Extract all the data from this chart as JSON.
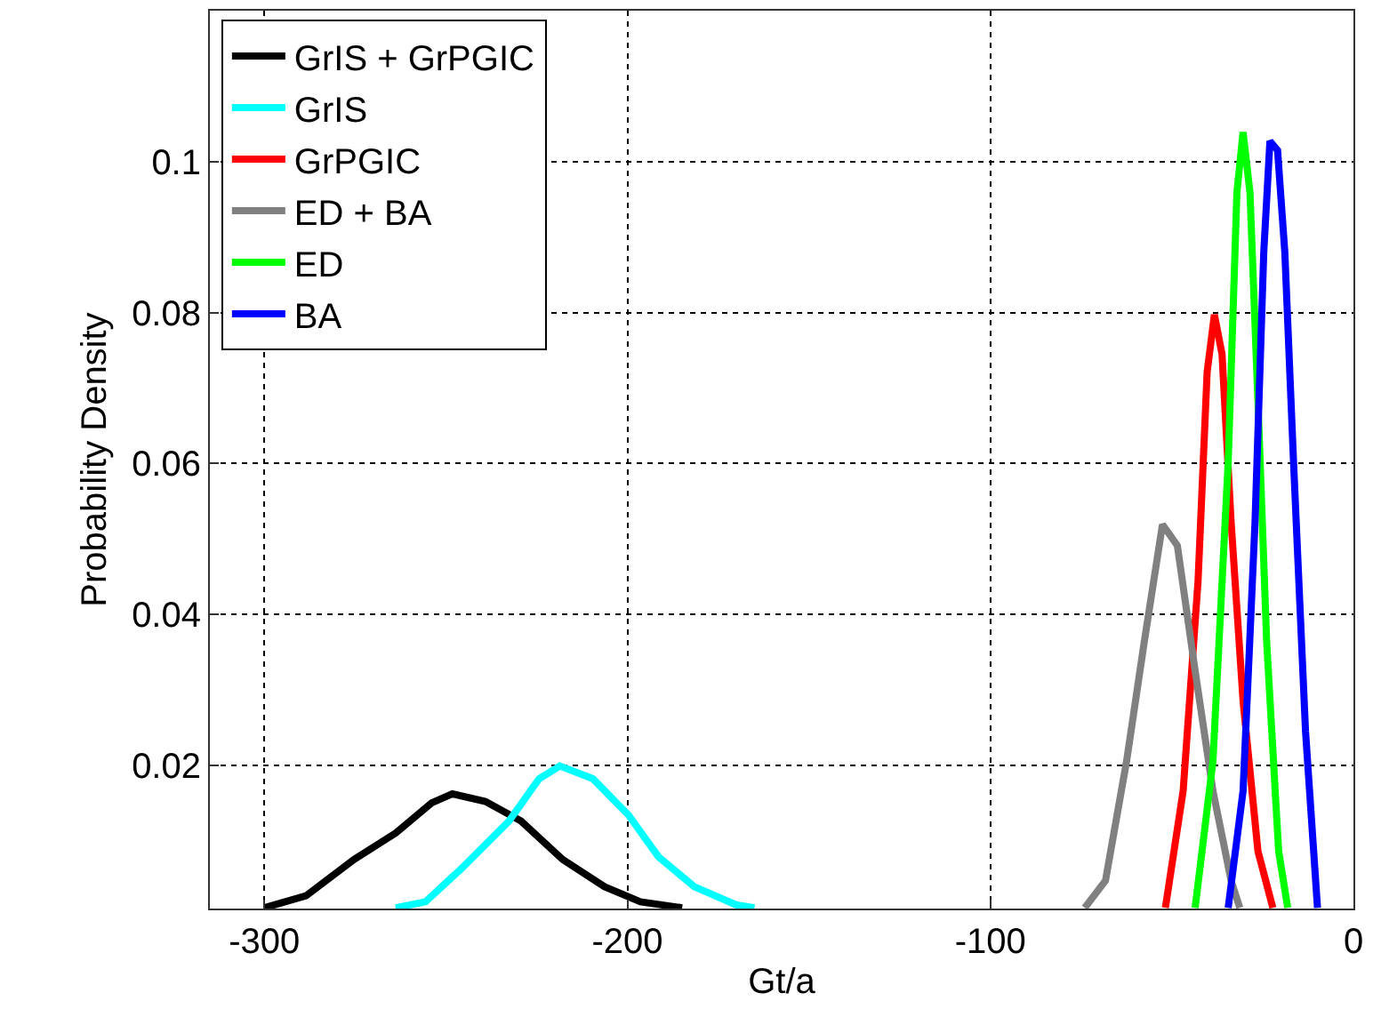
{
  "chart_data": {
    "type": "line",
    "xlabel": "Gt/a",
    "ylabel": "Probability Density",
    "xlim": [
      -315,
      0
    ],
    "ylim": [
      0.001,
      0.12
    ],
    "xticks": [
      -300,
      -200,
      -100,
      0
    ],
    "yticks": [
      0.02,
      0.04,
      0.06,
      0.08,
      0.1
    ],
    "grid": true,
    "legend": "top left",
    "line_style": "solid",
    "marker": "none",
    "series": [
      {
        "name": "GrIS + GrPGIC",
        "color": "#000000",
        "x": [
          -300,
          -288.5,
          -275.3,
          -263.8,
          -253.9,
          -248.2,
          -239.1,
          -229.3,
          -217.8,
          -206.3,
          -196.4,
          -184.9
        ],
        "values": [
          0.0011,
          0.0027,
          0.0075,
          0.011,
          0.015,
          0.0162,
          0.0152,
          0.0126,
          0.0075,
          0.0039,
          0.0019,
          0.0011
        ]
      },
      {
        "name": "GrIS",
        "color": "#00ffff",
        "x": [
          -263.8,
          -255.6,
          -245.7,
          -232.6,
          -224.3,
          -218.6,
          -209.5,
          -199.7,
          -191.5,
          -181.6,
          -170.1,
          -165
        ],
        "values": [
          0.0011,
          0.0019,
          0.0063,
          0.0126,
          0.0182,
          0.0199,
          0.0182,
          0.0134,
          0.0079,
          0.0039,
          0.0015,
          0.0011
        ]
      },
      {
        "name": "GrPGIC",
        "color": "#ff0000",
        "x": [
          -51.8,
          -46.9,
          -42.8,
          -40.3,
          -38.3,
          -36.2,
          -33.7,
          -30.4,
          -26.3,
          -22.2
        ],
        "values": [
          0.0011,
          0.0166,
          0.0444,
          0.0721,
          0.0797,
          0.0745,
          0.0523,
          0.0285,
          0.0086,
          0.0011
        ]
      },
      {
        "name": "ED + BA",
        "color": "#808080",
        "x": [
          -74.0,
          -68.3,
          -62.5,
          -57.6,
          -52.6,
          -48.5,
          -43.6,
          -38.7,
          -33.7,
          -31.3
        ],
        "values": [
          0.0011,
          0.0047,
          0.0205,
          0.0364,
          0.0519,
          0.0491,
          0.0325,
          0.0166,
          0.0047,
          0.0011
        ]
      },
      {
        "name": "ED",
        "color": "#00ff00",
        "x": [
          -43.6,
          -38.7,
          -34.5,
          -32.1,
          -30.4,
          -28.5,
          -26.3,
          -23.9,
          -20.6,
          -18.1
        ],
        "values": [
          0.0011,
          0.0205,
          0.0602,
          0.0959,
          0.1039,
          0.0959,
          0.0682,
          0.0364,
          0.0086,
          0.0011
        ]
      },
      {
        "name": "BA",
        "color": "#0000ff",
        "x": [
          -34.5,
          -30.4,
          -27.1,
          -24.7,
          -23.0,
          -20.9,
          -18.9,
          -16.5,
          -13.2,
          -9.9
        ],
        "values": [
          0.0011,
          0.0166,
          0.0523,
          0.088,
          0.1027,
          0.1015,
          0.088,
          0.0602,
          0.0245,
          0.0011
        ]
      }
    ]
  }
}
